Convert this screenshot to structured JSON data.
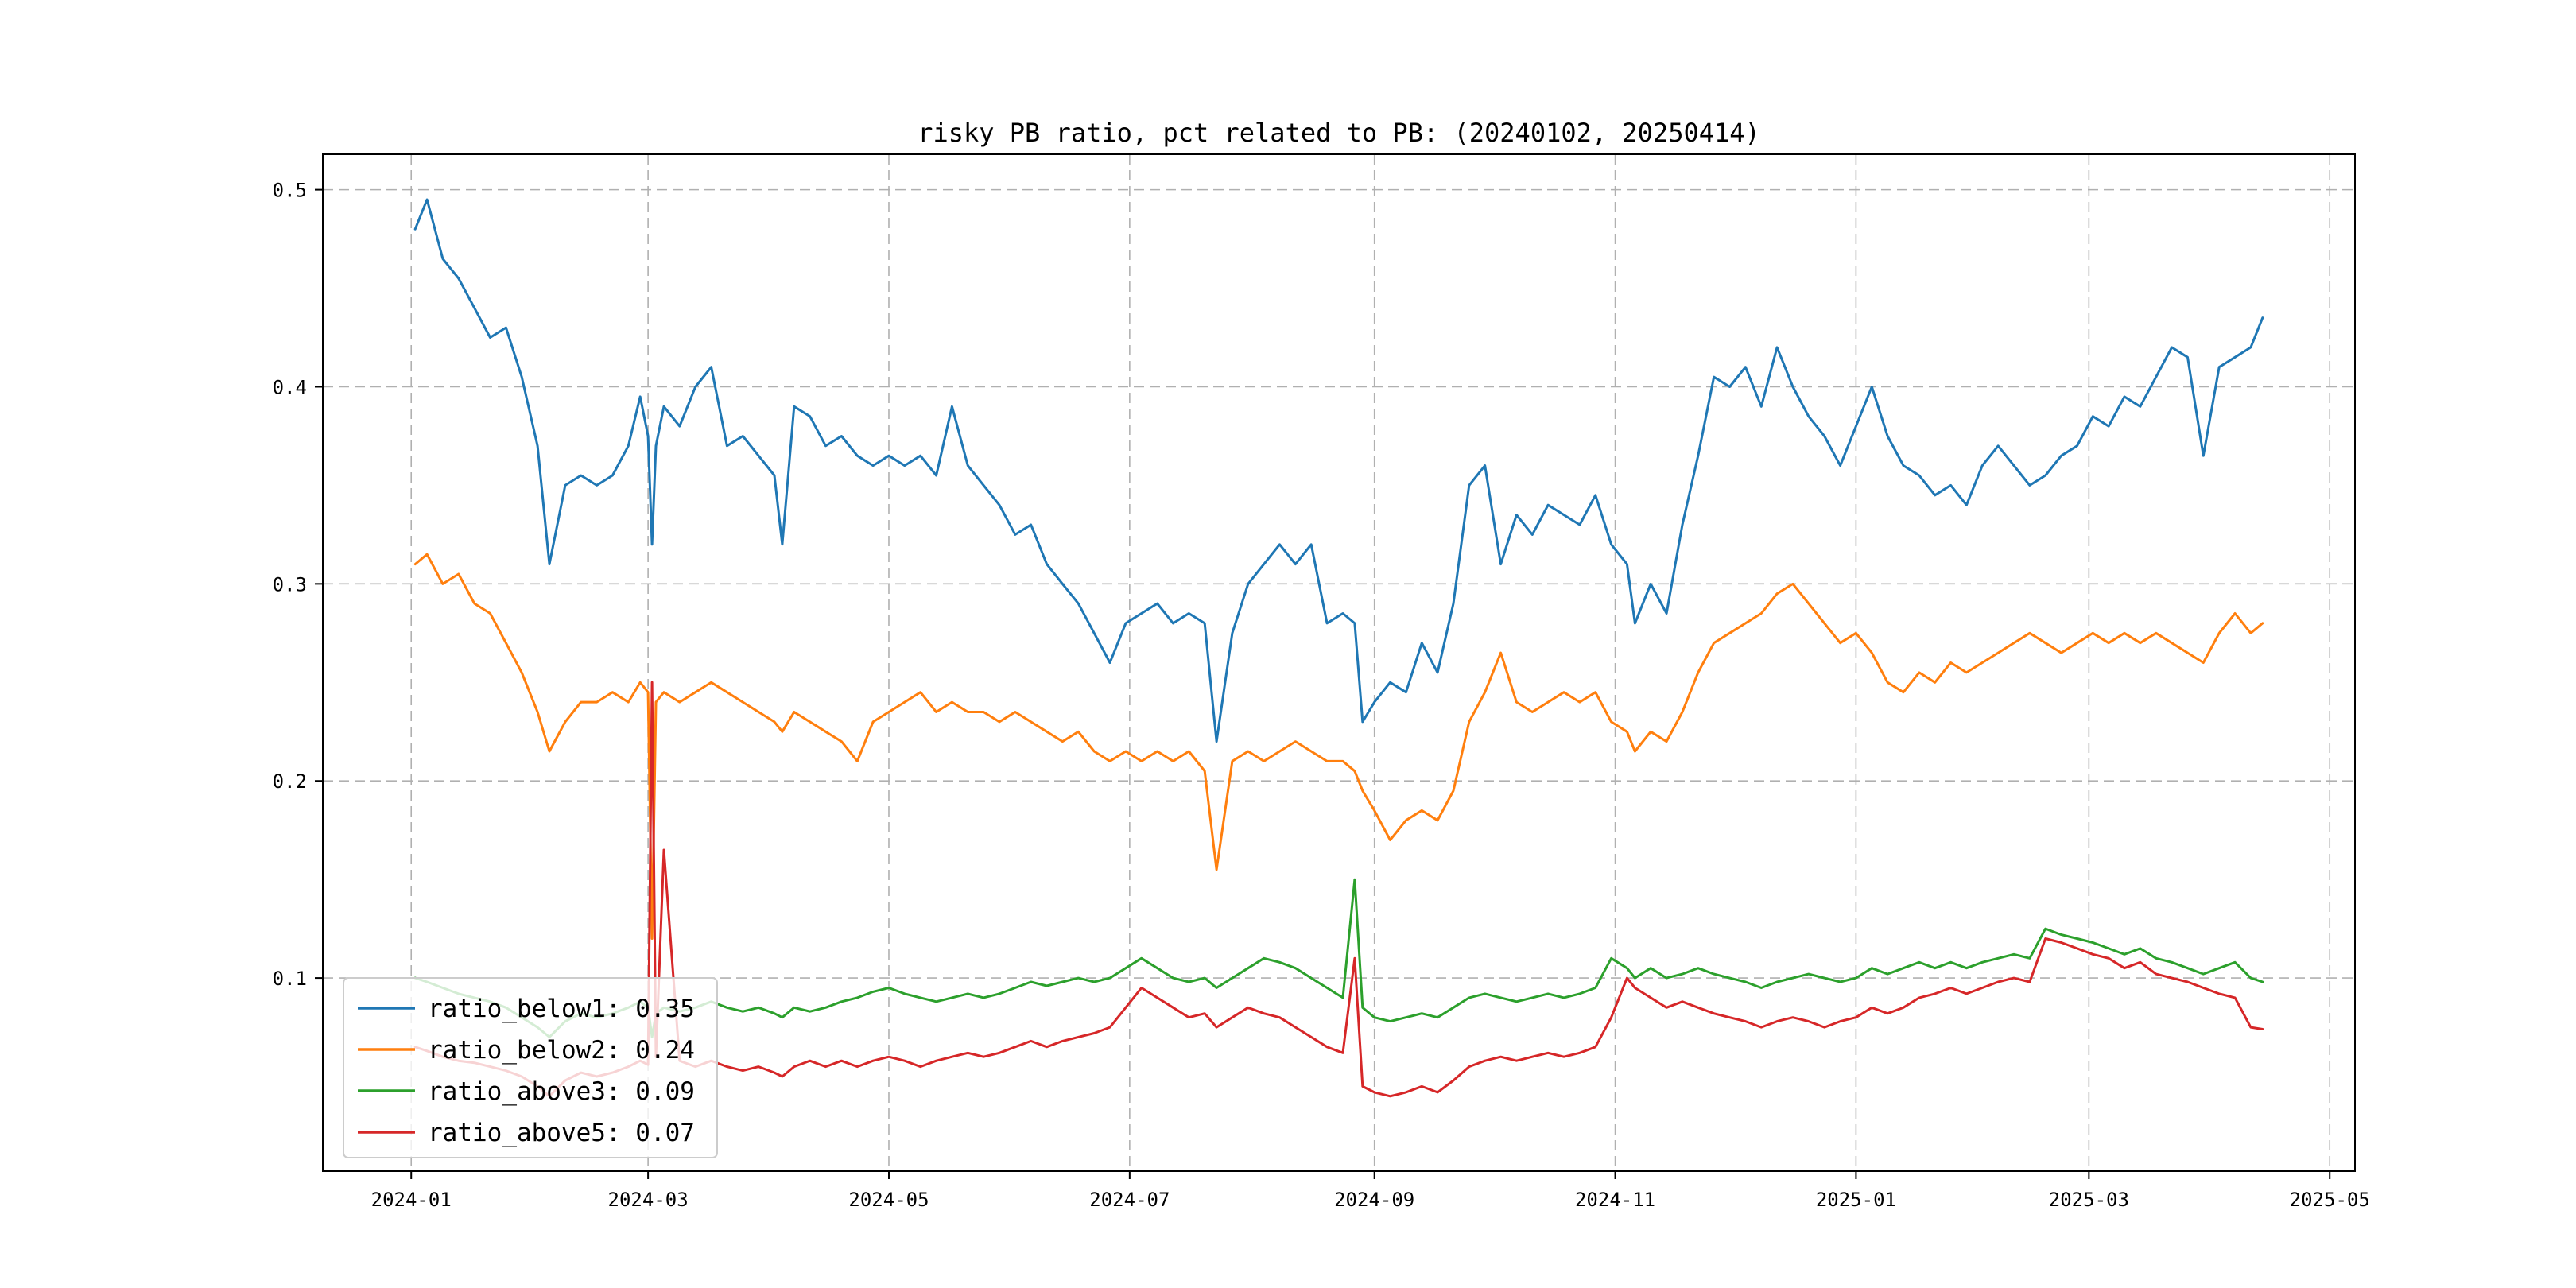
{
  "figure": {
    "background": "#ffffff"
  },
  "chart_data": {
    "type": "line",
    "title": "risky PB ratio, pct related to PB: (20240102, 20250414)",
    "xlabel": "",
    "ylabel": "",
    "x_unit": "days since 2024-01-02",
    "xlim_days": [
      -23.4,
      491.4
    ],
    "ylim": [
      0.002,
      0.518
    ],
    "grid": {
      "on": true,
      "style": "dashed",
      "color": "#b0b0b0"
    },
    "legend_position": "lower left",
    "x_tick_labels": [
      "2024-01",
      "2024-03",
      "2024-05",
      "2024-07",
      "2024-09",
      "2024-11",
      "2025-01",
      "2025-03",
      "2025-05"
    ],
    "x_tick_days": [
      -1,
      59,
      120,
      181,
      243,
      304,
      365,
      424,
      485
    ],
    "y_ticks": [
      0.1,
      0.2,
      0.3,
      0.4,
      0.5
    ],
    "x": [
      0,
      3,
      7,
      11,
      15,
      19,
      23,
      27,
      31,
      34,
      38,
      42,
      46,
      50,
      54,
      57,
      59,
      60,
      61,
      63,
      67,
      71,
      75,
      79,
      83,
      87,
      91,
      93,
      96,
      100,
      104,
      108,
      112,
      116,
      120,
      124,
      128,
      132,
      136,
      140,
      144,
      148,
      152,
      156,
      160,
      164,
      168,
      172,
      176,
      180,
      184,
      188,
      192,
      196,
      200,
      203,
      207,
      211,
      215,
      219,
      223,
      227,
      231,
      235,
      238,
      240,
      243,
      247,
      251,
      255,
      259,
      263,
      267,
      271,
      275,
      279,
      283,
      287,
      291,
      295,
      299,
      303,
      307,
      309,
      313,
      317,
      321,
      325,
      329,
      333,
      337,
      341,
      345,
      349,
      353,
      357,
      361,
      365,
      369,
      373,
      377,
      381,
      385,
      389,
      393,
      397,
      401,
      405,
      409,
      413,
      417,
      421,
      425,
      429,
      433,
      437,
      441,
      445,
      449,
      453,
      457,
      461,
      465,
      468
    ],
    "series": [
      {
        "name": "ratio_below1",
        "legend_label": "ratio_below1: 0.35",
        "color": "#1f77b4",
        "values": [
          0.48,
          0.495,
          0.465,
          0.455,
          0.44,
          0.425,
          0.43,
          0.405,
          0.37,
          0.31,
          0.35,
          0.355,
          0.35,
          0.355,
          0.37,
          0.395,
          0.375,
          0.32,
          0.37,
          0.39,
          0.38,
          0.4,
          0.41,
          0.37,
          0.375,
          0.365,
          0.355,
          0.32,
          0.39,
          0.385,
          0.37,
          0.375,
          0.365,
          0.36,
          0.365,
          0.36,
          0.365,
          0.355,
          0.39,
          0.36,
          0.35,
          0.34,
          0.325,
          0.33,
          0.31,
          0.3,
          0.29,
          0.275,
          0.26,
          0.28,
          0.285,
          0.29,
          0.28,
          0.285,
          0.28,
          0.22,
          0.275,
          0.3,
          0.31,
          0.32,
          0.31,
          0.32,
          0.28,
          0.285,
          0.28,
          0.23,
          0.24,
          0.25,
          0.245,
          0.27,
          0.255,
          0.29,
          0.35,
          0.36,
          0.31,
          0.335,
          0.325,
          0.34,
          0.335,
          0.33,
          0.345,
          0.32,
          0.31,
          0.28,
          0.3,
          0.285,
          0.33,
          0.365,
          0.405,
          0.4,
          0.41,
          0.39,
          0.42,
          0.4,
          0.385,
          0.375,
          0.36,
          0.38,
          0.4,
          0.375,
          0.36,
          0.355,
          0.345,
          0.35,
          0.34,
          0.36,
          0.37,
          0.36,
          0.35,
          0.355,
          0.365,
          0.37,
          0.385,
          0.38,
          0.395,
          0.39,
          0.405,
          0.42,
          0.415,
          0.365,
          0.41,
          0.415,
          0.42,
          0.435
        ]
      },
      {
        "name": "ratio_below2",
        "legend_label": "ratio_below2: 0.24",
        "color": "#ff7f0e",
        "values": [
          0.31,
          0.315,
          0.3,
          0.305,
          0.29,
          0.285,
          0.27,
          0.255,
          0.235,
          0.215,
          0.23,
          0.24,
          0.24,
          0.245,
          0.24,
          0.25,
          0.245,
          0.12,
          0.24,
          0.245,
          0.24,
          0.245,
          0.25,
          0.245,
          0.24,
          0.235,
          0.23,
          0.225,
          0.235,
          0.23,
          0.225,
          0.22,
          0.21,
          0.23,
          0.235,
          0.24,
          0.245,
          0.235,
          0.24,
          0.235,
          0.235,
          0.23,
          0.235,
          0.23,
          0.225,
          0.22,
          0.225,
          0.215,
          0.21,
          0.215,
          0.21,
          0.215,
          0.21,
          0.215,
          0.205,
          0.155,
          0.21,
          0.215,
          0.21,
          0.215,
          0.22,
          0.215,
          0.21,
          0.21,
          0.205,
          0.195,
          0.185,
          0.17,
          0.18,
          0.185,
          0.18,
          0.195,
          0.23,
          0.245,
          0.265,
          0.24,
          0.235,
          0.24,
          0.245,
          0.24,
          0.245,
          0.23,
          0.225,
          0.215,
          0.225,
          0.22,
          0.235,
          0.255,
          0.27,
          0.275,
          0.28,
          0.285,
          0.295,
          0.3,
          0.29,
          0.28,
          0.27,
          0.275,
          0.265,
          0.25,
          0.245,
          0.255,
          0.25,
          0.26,
          0.255,
          0.26,
          0.265,
          0.27,
          0.275,
          0.27,
          0.265,
          0.27,
          0.275,
          0.27,
          0.275,
          0.27,
          0.275,
          0.27,
          0.265,
          0.26,
          0.275,
          0.285,
          0.275,
          0.28
        ]
      },
      {
        "name": "ratio_above3",
        "legend_label": "ratio_above3: 0.09",
        "color": "#2ca02c",
        "values": [
          0.1,
          0.098,
          0.095,
          0.092,
          0.09,
          0.088,
          0.085,
          0.08,
          0.075,
          0.07,
          0.078,
          0.082,
          0.08,
          0.082,
          0.085,
          0.088,
          0.085,
          0.07,
          0.082,
          0.085,
          0.083,
          0.085,
          0.088,
          0.085,
          0.083,
          0.085,
          0.082,
          0.08,
          0.085,
          0.083,
          0.085,
          0.088,
          0.09,
          0.093,
          0.095,
          0.092,
          0.09,
          0.088,
          0.09,
          0.092,
          0.09,
          0.092,
          0.095,
          0.098,
          0.096,
          0.098,
          0.1,
          0.098,
          0.1,
          0.105,
          0.11,
          0.105,
          0.1,
          0.098,
          0.1,
          0.095,
          0.1,
          0.105,
          0.11,
          0.108,
          0.105,
          0.1,
          0.095,
          0.09,
          0.15,
          0.085,
          0.08,
          0.078,
          0.08,
          0.082,
          0.08,
          0.085,
          0.09,
          0.092,
          0.09,
          0.088,
          0.09,
          0.092,
          0.09,
          0.092,
          0.095,
          0.11,
          0.105,
          0.1,
          0.105,
          0.1,
          0.102,
          0.105,
          0.102,
          0.1,
          0.098,
          0.095,
          0.098,
          0.1,
          0.102,
          0.1,
          0.098,
          0.1,
          0.105,
          0.102,
          0.105,
          0.108,
          0.105,
          0.108,
          0.105,
          0.108,
          0.11,
          0.112,
          0.11,
          0.125,
          0.122,
          0.12,
          0.118,
          0.115,
          0.112,
          0.115,
          0.11,
          0.108,
          0.105,
          0.102,
          0.105,
          0.108,
          0.1,
          0.098
        ]
      },
      {
        "name": "ratio_above5",
        "legend_label": "ratio_above5: 0.07",
        "color": "#d62728",
        "values": [
          0.065,
          0.063,
          0.06,
          0.058,
          0.057,
          0.055,
          0.053,
          0.05,
          0.045,
          0.04,
          0.048,
          0.052,
          0.05,
          0.052,
          0.055,
          0.058,
          0.056,
          0.25,
          0.06,
          0.165,
          0.058,
          0.055,
          0.058,
          0.055,
          0.053,
          0.055,
          0.052,
          0.05,
          0.055,
          0.058,
          0.055,
          0.058,
          0.055,
          0.058,
          0.06,
          0.058,
          0.055,
          0.058,
          0.06,
          0.062,
          0.06,
          0.062,
          0.065,
          0.068,
          0.065,
          0.068,
          0.07,
          0.072,
          0.075,
          0.085,
          0.095,
          0.09,
          0.085,
          0.08,
          0.082,
          0.075,
          0.08,
          0.085,
          0.082,
          0.08,
          0.075,
          0.07,
          0.065,
          0.062,
          0.11,
          0.045,
          0.042,
          0.04,
          0.042,
          0.045,
          0.042,
          0.048,
          0.055,
          0.058,
          0.06,
          0.058,
          0.06,
          0.062,
          0.06,
          0.062,
          0.065,
          0.08,
          0.1,
          0.095,
          0.09,
          0.085,
          0.088,
          0.085,
          0.082,
          0.08,
          0.078,
          0.075,
          0.078,
          0.08,
          0.078,
          0.075,
          0.078,
          0.08,
          0.085,
          0.082,
          0.085,
          0.09,
          0.092,
          0.095,
          0.092,
          0.095,
          0.098,
          0.1,
          0.098,
          0.12,
          0.118,
          0.115,
          0.112,
          0.11,
          0.105,
          0.108,
          0.102,
          0.1,
          0.098,
          0.095,
          0.092,
          0.09,
          0.075,
          0.074
        ]
      }
    ],
    "legend_entries": [
      "ratio_below1: 0.35",
      "ratio_below2: 0.24",
      "ratio_above3: 0.09",
      "ratio_above5: 0.07"
    ]
  }
}
